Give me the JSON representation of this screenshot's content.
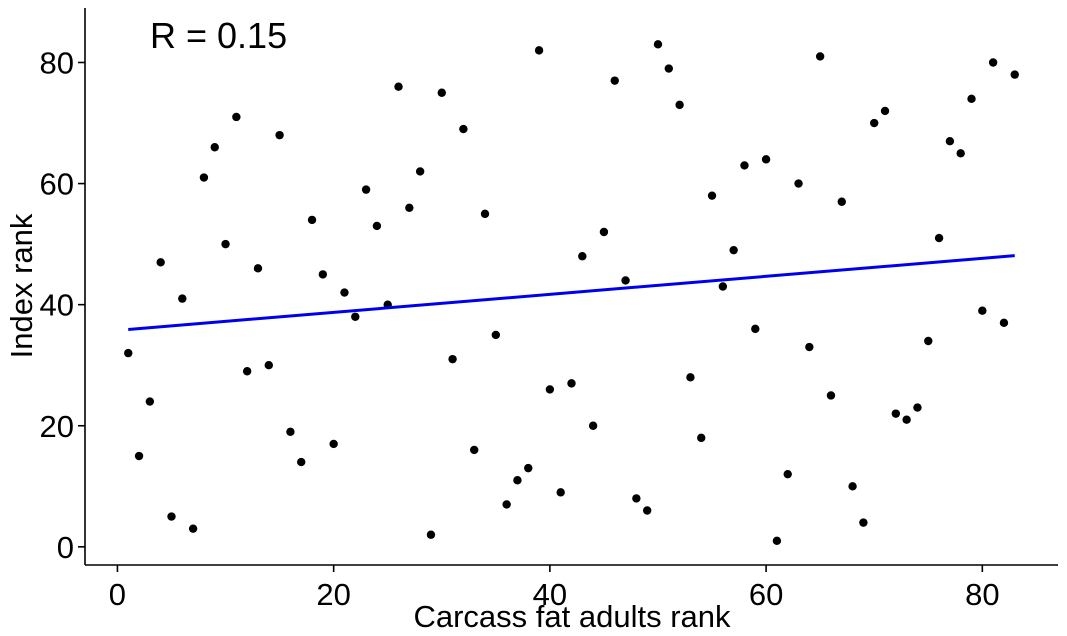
{
  "chart_data": {
    "type": "scatter",
    "xlabel": "Carcass fat adults rank",
    "ylabel": "Index rank",
    "xlim": [
      -3,
      87
    ],
    "ylim": [
      -3,
      89
    ],
    "x_ticks": [
      0,
      20,
      40,
      60,
      80
    ],
    "y_ticks": [
      0,
      20,
      40,
      60,
      80
    ],
    "grid": false,
    "annotation": "R =  0.15",
    "point_color": "#000000",
    "line_color": "#0000ee",
    "points": [
      [
        1,
        32
      ],
      [
        2,
        15
      ],
      [
        3,
        24
      ],
      [
        4,
        47
      ],
      [
        5,
        5
      ],
      [
        6,
        41
      ],
      [
        7,
        3
      ],
      [
        8,
        61
      ],
      [
        9,
        66
      ],
      [
        10,
        50
      ],
      [
        11,
        71
      ],
      [
        12,
        29
      ],
      [
        13,
        46
      ],
      [
        14,
        30
      ],
      [
        15,
        68
      ],
      [
        16,
        19
      ],
      [
        17,
        14
      ],
      [
        18,
        54
      ],
      [
        19,
        45
      ],
      [
        20,
        17
      ],
      [
        21,
        42
      ],
      [
        22,
        38
      ],
      [
        23,
        59
      ],
      [
        24,
        53
      ],
      [
        25,
        40
      ],
      [
        26,
        76
      ],
      [
        27,
        56
      ],
      [
        28,
        62
      ],
      [
        29,
        2
      ],
      [
        30,
        75
      ],
      [
        31,
        31
      ],
      [
        32,
        69
      ],
      [
        33,
        16
      ],
      [
        34,
        55
      ],
      [
        35,
        35
      ],
      [
        36,
        7
      ],
      [
        37,
        11
      ],
      [
        38,
        13
      ],
      [
        39,
        82
      ],
      [
        40,
        26
      ],
      [
        41,
        9
      ],
      [
        42,
        27
      ],
      [
        43,
        48
      ],
      [
        44,
        20
      ],
      [
        45,
        52
      ],
      [
        46,
        77
      ],
      [
        47,
        44
      ],
      [
        48,
        8
      ],
      [
        49,
        6
      ],
      [
        50,
        83
      ],
      [
        51,
        79
      ],
      [
        52,
        73
      ],
      [
        53,
        28
      ],
      [
        54,
        18
      ],
      [
        55,
        58
      ],
      [
        56,
        43
      ],
      [
        57,
        49
      ],
      [
        58,
        63
      ],
      [
        59,
        36
      ],
      [
        60,
        64
      ],
      [
        61,
        1
      ],
      [
        62,
        12
      ],
      [
        63,
        60
      ],
      [
        64,
        33
      ],
      [
        65,
        81
      ],
      [
        66,
        25
      ],
      [
        67,
        57
      ],
      [
        68,
        10
      ],
      [
        69,
        4
      ],
      [
        70,
        70
      ],
      [
        71,
        72
      ],
      [
        72,
        22
      ],
      [
        73,
        21
      ],
      [
        74,
        23
      ],
      [
        75,
        34
      ],
      [
        76,
        51
      ],
      [
        77,
        67
      ],
      [
        78,
        65
      ],
      [
        79,
        74
      ],
      [
        80,
        39
      ],
      [
        81,
        80
      ],
      [
        82,
        37
      ],
      [
        83,
        78
      ]
    ],
    "trend_line": {
      "x": [
        1,
        83
      ],
      "y": [
        35.9,
        48.1
      ]
    }
  }
}
